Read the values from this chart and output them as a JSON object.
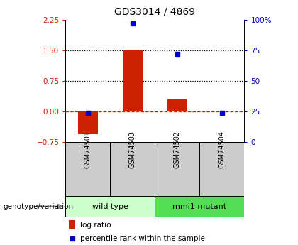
{
  "title": "GDS3014 / 4869",
  "samples": [
    "GSM74501",
    "GSM74503",
    "GSM74502",
    "GSM74504"
  ],
  "log_ratio": [
    -0.55,
    1.5,
    0.3,
    0.0
  ],
  "percentile": [
    24,
    97,
    72,
    24
  ],
  "ylim_left": [
    -0.75,
    2.25
  ],
  "ylim_right": [
    0,
    100
  ],
  "yticks_left": [
    -0.75,
    0,
    0.75,
    1.5,
    2.25
  ],
  "yticks_right": [
    0,
    25,
    50,
    75,
    100
  ],
  "yticklabels_right": [
    "0",
    "25",
    "50",
    "75",
    "100%"
  ],
  "hlines_dotted": [
    1.5,
    0.75
  ],
  "hline_dashed": 0,
  "bar_color": "#cc2200",
  "dot_color": "#0000cc",
  "bar_width": 0.45,
  "groups": [
    {
      "label": "wild type",
      "samples": [
        "GSM74501",
        "GSM74503"
      ],
      "color": "#ccffcc"
    },
    {
      "label": "mmi1 mutant",
      "samples": [
        "GSM74502",
        "GSM74504"
      ],
      "color": "#55dd55"
    }
  ],
  "sample_box_color": "#cccccc",
  "legend_log_ratio_label": "log ratio",
  "legend_percentile_label": "percentile rank within the sample",
  "genotype_label": "genotype/variation",
  "left_axis_color": "#cc2200",
  "right_axis_color": "#0000cc",
  "title_fontsize": 10,
  "tick_fontsize": 7.5,
  "figsize": [
    4.2,
    3.45
  ],
  "dpi": 100
}
